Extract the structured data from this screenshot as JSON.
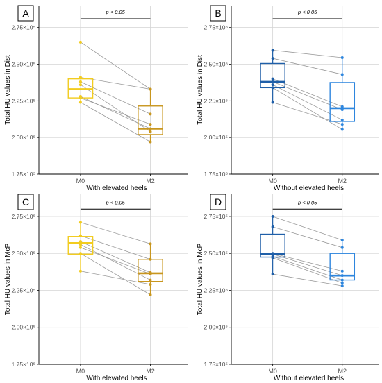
{
  "colors": {
    "with_light": "#f2cc1f",
    "with_dark": "#c8961e",
    "without_dark": "#1f5fa8",
    "without_light": "#2e86de",
    "grid": "#d4d4d4",
    "pair_line": "#9a9a9a",
    "axis_text": "#4d4d4d"
  },
  "chart_data": [
    {
      "panel_label": "A",
      "type": "box",
      "ylabel": "Total HU values in Dist",
      "xlabel": "With elevated heels",
      "categories": [
        "M0",
        "M2"
      ],
      "yticks": [
        "1.75×10⁵",
        "2.00×10⁵",
        "2.25×10⁵",
        "2.50×10⁵",
        "2.75×10⁵"
      ],
      "ytick_values": [
        175000,
        200000,
        225000,
        250000,
        275000
      ],
      "ylim": [
        175000,
        290000
      ],
      "annotation": "p < 0.05",
      "bracket_y": 281000,
      "color_keys": [
        "with_light",
        "with_dark"
      ],
      "boxes": [
        {
          "q1": 227000,
          "median": 233000,
          "q3": 240000,
          "whisker_low": 224000,
          "whisker_high": 242000
        },
        {
          "q1": 202000,
          "median": 206000,
          "q3": 221500,
          "whisker_low": 197000,
          "whisker_high": 233000
        }
      ],
      "pairs": [
        [
          265000,
          233000
        ],
        [
          241000,
          233000
        ],
        [
          238000,
          216000
        ],
        [
          236000,
          204000
        ],
        [
          228000,
          206000
        ],
        [
          227000,
          209000
        ],
        [
          224000,
          197000
        ]
      ]
    },
    {
      "panel_label": "B",
      "type": "box",
      "ylabel": "Total HU values in Dist",
      "xlabel": "Without elevated heels",
      "categories": [
        "M0",
        "M2"
      ],
      "yticks": [
        "1.75×10⁵",
        "2.00×10⁵",
        "2.25×10⁵",
        "2.50×10⁵",
        "2.75×10⁵"
      ],
      "ytick_values": [
        175000,
        200000,
        225000,
        250000,
        275000
      ],
      "ylim": [
        175000,
        290000
      ],
      "annotation": "p < 0.05",
      "bracket_y": 281000,
      "color_keys": [
        "without_dark",
        "without_light"
      ],
      "boxes": [
        {
          "q1": 234000,
          "median": 238000,
          "q3": 250500,
          "whisker_low": 224000,
          "whisker_high": 259500
        },
        {
          "q1": 211000,
          "median": 220000,
          "q3": 237500,
          "whisker_low": 205500,
          "whisker_high": 254500
        }
      ],
      "pairs": [
        [
          259500,
          254500
        ],
        [
          254000,
          243000
        ],
        [
          240000,
          221000
        ],
        [
          238000,
          219000
        ],
        [
          236000,
          212000
        ],
        [
          234000,
          205500
        ],
        [
          224000,
          209000
        ]
      ]
    },
    {
      "panel_label": "C",
      "type": "box",
      "ylabel": "Total HU values in McP",
      "xlabel": "With elevated heels",
      "categories": [
        "M0",
        "M2"
      ],
      "yticks": [
        "1.75×10⁵",
        "2.00×10⁵",
        "2.25×10⁵",
        "2.50×10⁵",
        "2.75×10⁵"
      ],
      "ytick_values": [
        175000,
        200000,
        225000,
        250000,
        275000
      ],
      "ylim": [
        175000,
        290000
      ],
      "annotation": "p < 0.05",
      "bracket_y": 280000,
      "color_keys": [
        "with_light",
        "with_dark"
      ],
      "boxes": [
        {
          "q1": 249500,
          "median": 257000,
          "q3": 261500,
          "whisker_low": 238000,
          "whisker_high": 271000
        },
        {
          "q1": 231000,
          "median": 236500,
          "q3": 246000,
          "whisker_low": 222000,
          "whisker_high": 256500
        }
      ],
      "pairs": [
        [
          271000,
          256500
        ],
        [
          262000,
          246000
        ],
        [
          258000,
          237000
        ],
        [
          256000,
          232000
        ],
        [
          254000,
          236000
        ],
        [
          250000,
          222000
        ],
        [
          238000,
          229000
        ]
      ]
    },
    {
      "panel_label": "D",
      "type": "box",
      "ylabel": "Total HU values in McP",
      "xlabel": "Without elevated heels",
      "categories": [
        "M0",
        "M2"
      ],
      "yticks": [
        "1.75×10⁵",
        "2.00×10⁵",
        "2.25×10⁵",
        "2.50×10⁵",
        "2.75×10⁵"
      ],
      "ytick_values": [
        175000,
        200000,
        225000,
        250000,
        275000
      ],
      "ylim": [
        175000,
        290000
      ],
      "annotation": "p < 0.05",
      "bracket_y": 280000,
      "color_keys": [
        "without_dark",
        "without_light"
      ],
      "boxes": [
        {
          "q1": 247500,
          "median": 249500,
          "q3": 263000,
          "whisker_low": 236000,
          "whisker_high": 275000
        },
        {
          "q1": 232000,
          "median": 235000,
          "q3": 250000,
          "whisker_low": 228000,
          "whisker_high": 259000
        }
      ],
      "pairs": [
        [
          275000,
          259000
        ],
        [
          268000,
          254000
        ],
        [
          250000,
          238000
        ],
        [
          249500,
          235000
        ],
        [
          248000,
          232000
        ],
        [
          247000,
          230000
        ],
        [
          236000,
          228000
        ]
      ]
    }
  ]
}
